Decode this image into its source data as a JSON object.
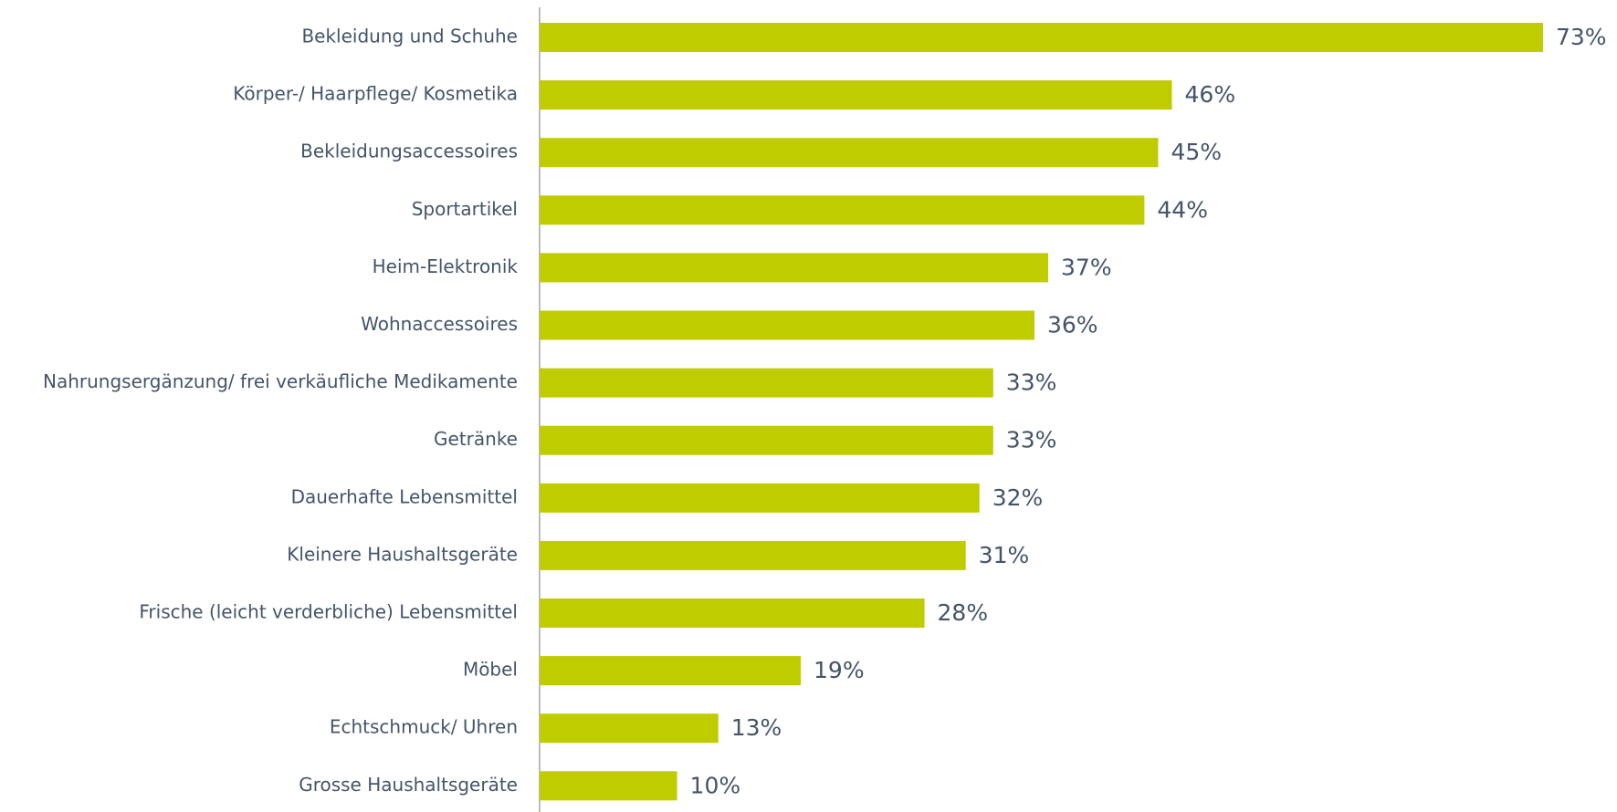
{
  "chart_data": {
    "type": "bar",
    "orientation": "horizontal",
    "color": "#bfcc00",
    "categories": [
      "Bekleidung und Schuhe",
      "Körper-/ Haarpflege/ Kosmetika",
      "Bekleidungsaccessoires",
      "Sportartikel",
      "Heim-Elektronik",
      "Wohnaccessoires",
      "Nahrungsergänzung/ frei verkäufliche Medikamente",
      "Getränke",
      "Dauerhafte Lebensmittel",
      "Kleinere Haushaltsgeräte",
      "Frische (leicht verderbliche) Lebensmittel",
      "Möbel",
      "Echtschmuck/ Uhren",
      "Grosse Haushaltsgeräte"
    ],
    "values": [
      73,
      46,
      45,
      44,
      37,
      36,
      33,
      33,
      32,
      31,
      28,
      19,
      13,
      10
    ],
    "value_labels": [
      "73%",
      "46%",
      "45%",
      "44%",
      "37%",
      "36%",
      "33%",
      "33%",
      "32%",
      "31%",
      "28%",
      "19%",
      "13%",
      "10%"
    ]
  }
}
